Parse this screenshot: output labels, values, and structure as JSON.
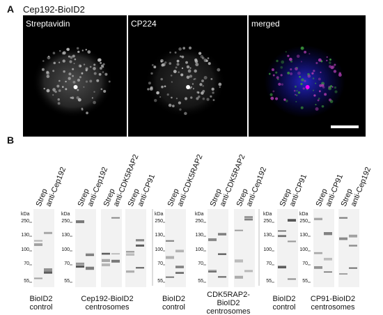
{
  "panel_a": {
    "label": "A",
    "title": "Cep192-BioID2",
    "images": [
      "Streptavidin",
      "CP224",
      "merged"
    ]
  },
  "panel_b": {
    "label": "B",
    "kda_unit": "kDa",
    "kda": [
      "250",
      "130",
      "100",
      "70",
      "55"
    ],
    "groups": [
      {
        "caption": [
          "BioID2",
          "control"
        ],
        "blots": [
          {
            "lanes": [
              "Strep",
              "anti-Cep192"
            ]
          }
        ]
      },
      {
        "caption": [
          "Cep192-BioID2",
          "centrosomes"
        ],
        "blots": [
          {
            "lanes": [
              "Strep",
              "anti-Cep192"
            ]
          },
          {
            "lanes": [
              "Strep",
              "anti-CDK5RAP2"
            ]
          },
          {
            "lanes": [
              "Strep",
              "anti-CP91"
            ]
          }
        ]
      },
      {
        "caption": [
          "BioID2",
          "control"
        ],
        "blots": [
          {
            "lanes": [
              "Strep",
              "anti-CDK5RAP2"
            ]
          }
        ]
      },
      {
        "caption": [
          "CDK5RAP2-",
          "BioID2",
          "centrosomes"
        ],
        "blots": [
          {
            "lanes": [
              "Strep",
              "anti-CDK5RAP2"
            ]
          },
          {
            "lanes": [
              "Strep",
              "anti-Cep192"
            ]
          }
        ]
      },
      {
        "caption": [
          "BioID2",
          "control"
        ],
        "blots": [
          {
            "lanes": [
              "Strep",
              "anti-CP91"
            ]
          }
        ]
      },
      {
        "caption": [
          "CP91-BioID2",
          "centrosomes"
        ],
        "blots": [
          {
            "lanes": [
              "Strep",
              "anti-CP91"
            ]
          },
          {
            "lanes": [
              "Strep",
              "anti-Cep192"
            ]
          }
        ]
      }
    ]
  }
}
